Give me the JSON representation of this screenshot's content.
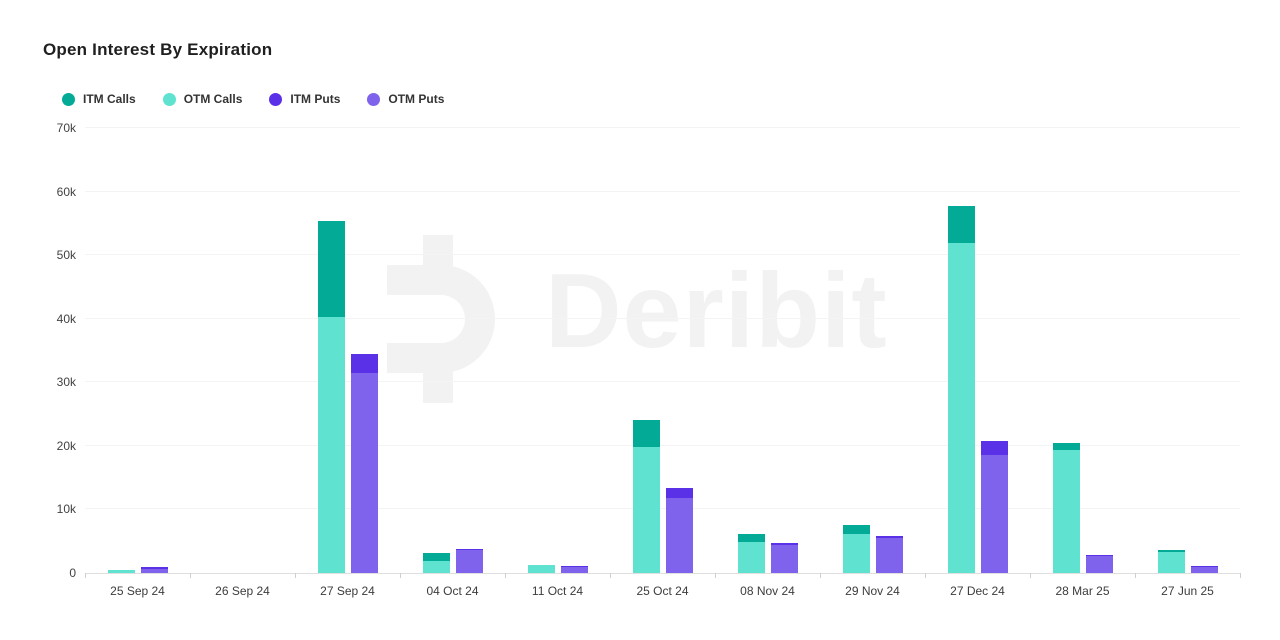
{
  "header": {
    "title": "Open Interest By Expiration"
  },
  "watermark": {
    "text": "Deribit",
    "color": "#f2f2f2"
  },
  "colors": {
    "itm_calls": "#03ab96",
    "otm_calls": "#5fe3d0",
    "itm_puts": "#5b31e8",
    "otm_puts": "#7f63ec",
    "grid": "#f4f4f4",
    "axis_line": "#dfdfdf",
    "tick": "#cfcfcf",
    "title_text": "#1f1f1f",
    "axis_text": "#3c3c3c"
  },
  "chart_data": {
    "type": "bar",
    "title": "Open Interest By Expiration",
    "xlabel": "",
    "ylabel": "",
    "ylim": [
      0,
      70000
    ],
    "ytick_step": 10000,
    "ytick_labels": [
      "0",
      "10k",
      "20k",
      "30k",
      "40k",
      "50k",
      "60k",
      "70k"
    ],
    "grid": "horizontal",
    "legend_position": "top-left",
    "categories": [
      "25 Sep 24",
      "26 Sep 24",
      "27 Sep 24",
      "04 Oct 24",
      "11 Oct 24",
      "25 Oct 24",
      "08 Nov 24",
      "29 Nov 24",
      "27 Dec 24",
      "28 Mar 25",
      "27 Jun 25"
    ],
    "series": [
      {
        "name": "ITM Calls",
        "color_key": "itm_calls",
        "values": [
          0,
          0,
          15200,
          1300,
          0,
          4200,
          1300,
          1300,
          5900,
          1100,
          300
        ]
      },
      {
        "name": "OTM Calls",
        "color_key": "otm_calls",
        "values": [
          500,
          0,
          40200,
          1900,
          1300,
          19900,
          4900,
          6200,
          51900,
          19400,
          3300
        ]
      },
      {
        "name": "ITM Puts",
        "color_key": "itm_puts",
        "values": [
          300,
          0,
          3000,
          200,
          200,
          1600,
          300,
          300,
          2100,
          100,
          100
        ]
      },
      {
        "name": "OTM Puts",
        "color_key": "otm_puts",
        "values": [
          600,
          0,
          31400,
          3600,
          900,
          11800,
          4400,
          5500,
          18600,
          2700,
          900
        ]
      }
    ],
    "stacks": [
      {
        "name": "calls",
        "order_bottom_to_top": [
          "OTM Calls",
          "ITM Calls"
        ]
      },
      {
        "name": "puts",
        "order_bottom_to_top": [
          "OTM Puts",
          "ITM Puts"
        ]
      }
    ]
  }
}
